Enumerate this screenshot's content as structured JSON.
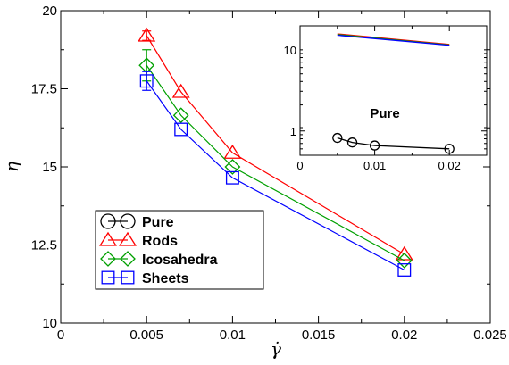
{
  "chart_data": [
    {
      "type": "line",
      "title": "",
      "xlabel": "γ̇",
      "ylabel": "η",
      "xlim": [
        0,
        0.025
      ],
      "ylim": [
        10,
        20
      ],
      "xticks": [
        "0",
        "0.005",
        "0.01",
        "0.015",
        "0.02",
        "0.025"
      ],
      "yticks": [
        "10",
        "12.5",
        "15",
        "17.5",
        "20"
      ],
      "legend_position": "bottom-left",
      "series": [
        {
          "name": "Pure",
          "marker": "circle",
          "color": "#000000",
          "x": [],
          "y": []
        },
        {
          "name": "Rods",
          "marker": "triangle",
          "color": "#ff0000",
          "x": [
            0.005,
            0.007,
            0.01,
            0.02
          ],
          "y": [
            19.2,
            17.4,
            15.45,
            12.2
          ],
          "err": [
            0.15,
            0,
            0,
            0
          ]
        },
        {
          "name": "Icosahedra",
          "marker": "diamond",
          "color": "#00a000",
          "x": [
            0.005,
            0.007,
            0.01,
            0.02
          ],
          "y": [
            18.25,
            16.65,
            15.0,
            12.0
          ],
          "err": [
            0.5,
            0,
            0,
            0
          ]
        },
        {
          "name": "Sheets",
          "marker": "square",
          "color": "#0000ff",
          "x": [
            0.005,
            0.007,
            0.01,
            0.02
          ],
          "y": [
            17.75,
            16.2,
            14.65,
            11.7
          ],
          "err": [
            0.3,
            0,
            0,
            0
          ]
        }
      ]
    },
    {
      "type": "line",
      "title": "Pure",
      "xlim": [
        0,
        0.025
      ],
      "ylim": [
        0.5,
        20
      ],
      "yscale": "log",
      "xticks": [
        "0",
        "0.01",
        "0.02"
      ],
      "yticks": [
        "1",
        "10"
      ],
      "series": [
        {
          "marker": "circle",
          "color": "#000000",
          "x": [
            0.005,
            0.007,
            0.01,
            0.02
          ],
          "y": [
            0.82,
            0.72,
            0.66,
            0.6
          ]
        },
        {
          "color": "#ff0000",
          "x": [
            0.005,
            0.02
          ],
          "y": [
            15.9,
            11.8
          ]
        },
        {
          "color": "#00a000",
          "x": [
            0.005,
            0.02
          ],
          "y": [
            15.6,
            11.6
          ]
        },
        {
          "color": "#0000ff",
          "x": [
            0.005,
            0.02
          ],
          "y": [
            15.3,
            11.5
          ]
        }
      ]
    }
  ]
}
